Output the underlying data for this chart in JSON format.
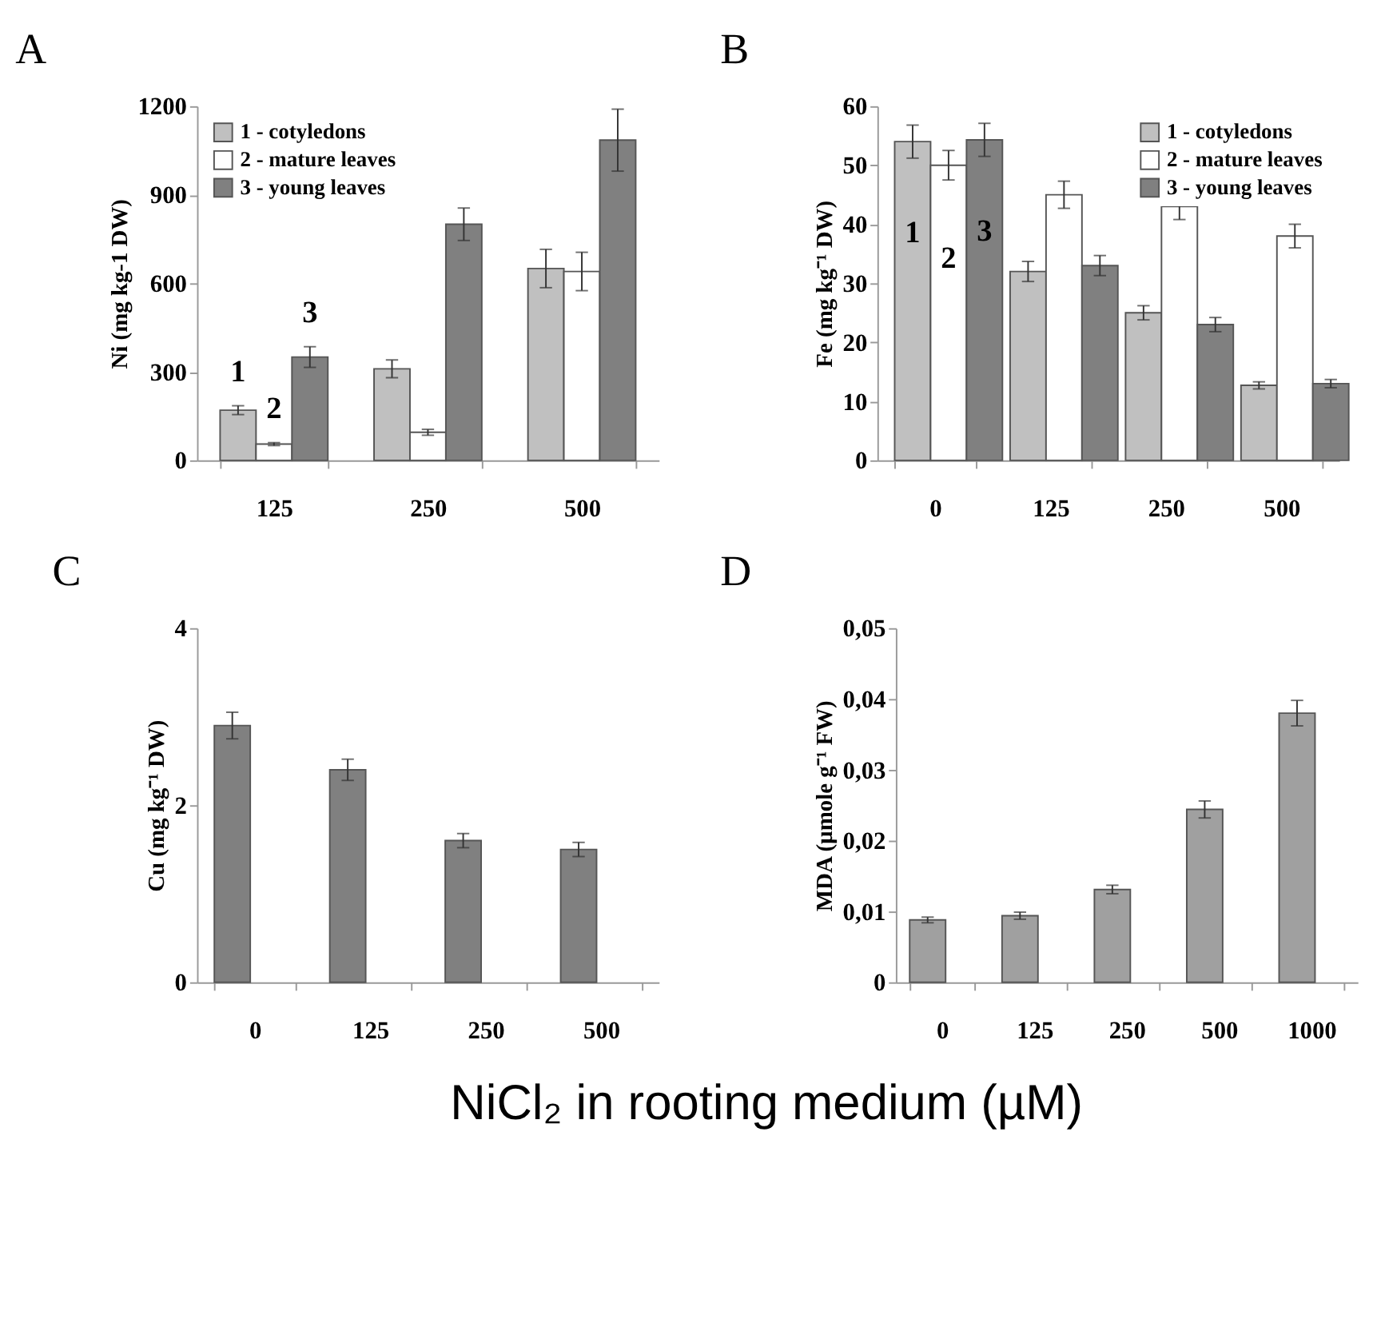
{
  "chart_data": [
    {
      "type": "bar",
      "title": "A",
      "ylabel": "Ni (mg kg-1 DW)",
      "categories": [
        "125",
        "250",
        "500"
      ],
      "ylim": [
        0,
        1200
      ],
      "yticks": [
        0,
        300,
        600,
        900,
        1200
      ],
      "grid": false,
      "legend": "top left",
      "series": [
        {
          "name": "1 - cotyledons",
          "color": "#c0c0c0",
          "values": [
            170,
            310,
            650
          ],
          "errors": [
            15,
            30,
            65
          ]
        },
        {
          "name": "2 - mature leaves",
          "color": "#ffffff",
          "values": [
            55,
            95,
            640
          ],
          "errors": [
            5,
            10,
            65
          ]
        },
        {
          "name": "3 - young leaves",
          "color": "#808080",
          "values": [
            350,
            800,
            1085
          ],
          "errors": [
            35,
            55,
            105
          ]
        }
      ],
      "annotations": [
        "1",
        "2",
        "3"
      ]
    },
    {
      "type": "bar",
      "title": "B",
      "ylabel": "Fe (mg kg⁻¹ DW)",
      "categories": [
        "0",
        "125",
        "250",
        "500"
      ],
      "ylim": [
        0,
        60
      ],
      "yticks": [
        0,
        10,
        20,
        30,
        40,
        50,
        60
      ],
      "grid": false,
      "legend": "top right",
      "series": [
        {
          "name": "1 - cotyledons",
          "color": "#c0c0c0",
          "values": [
            54,
            32,
            25,
            12.7
          ],
          "errors": [
            2.8,
            1.7,
            1.2,
            0.6
          ]
        },
        {
          "name": "2 - mature leaves",
          "color": "#ffffff",
          "values": [
            50,
            45,
            43,
            38
          ],
          "errors": [
            2.5,
            2.3,
            2.2,
            2
          ]
        },
        {
          "name": "3 - young leaves",
          "color": "#808080",
          "values": [
            54.3,
            33,
            23,
            13
          ],
          "errors": [
            2.8,
            1.7,
            1.2,
            0.7
          ]
        }
      ],
      "annotations": [
        "1",
        "2",
        "3"
      ]
    },
    {
      "type": "bar",
      "title": "C",
      "ylabel": "Cu (mg kg⁻¹ DW)",
      "categories": [
        "0",
        "125",
        "250",
        "500"
      ],
      "ylim": [
        0,
        4
      ],
      "yticks": [
        0,
        2,
        4
      ],
      "grid": false,
      "color": "#808080",
      "values": [
        2.9,
        2.4,
        1.6,
        1.5
      ],
      "errors": [
        0.15,
        0.12,
        0.08,
        0.08
      ]
    },
    {
      "type": "bar",
      "title": "D",
      "ylabel": "MDA (µmole g⁻¹ FW)",
      "categories": [
        "0",
        "125",
        "250",
        "500",
        "1000"
      ],
      "ylim": [
        0,
        0.05
      ],
      "yticks": [
        {
          "value": 0,
          "label": "0"
        },
        {
          "value": 0.01,
          "label": "0,01"
        },
        {
          "value": 0.02,
          "label": "0,02"
        },
        {
          "value": 0.03,
          "label": "0,03"
        },
        {
          "value": 0.04,
          "label": "0,04"
        },
        {
          "value": 0.05,
          "label": "0,05"
        }
      ],
      "grid": false,
      "color": "#a0a0a0",
      "values": [
        0.0088,
        0.0094,
        0.0131,
        0.0244,
        0.038
      ],
      "errors": [
        0.0004,
        0.0005,
        0.0006,
        0.0012,
        0.0018
      ],
      "annotations": [
        "NiCl₂ in rooting medium (µM)"
      ]
    }
  ]
}
